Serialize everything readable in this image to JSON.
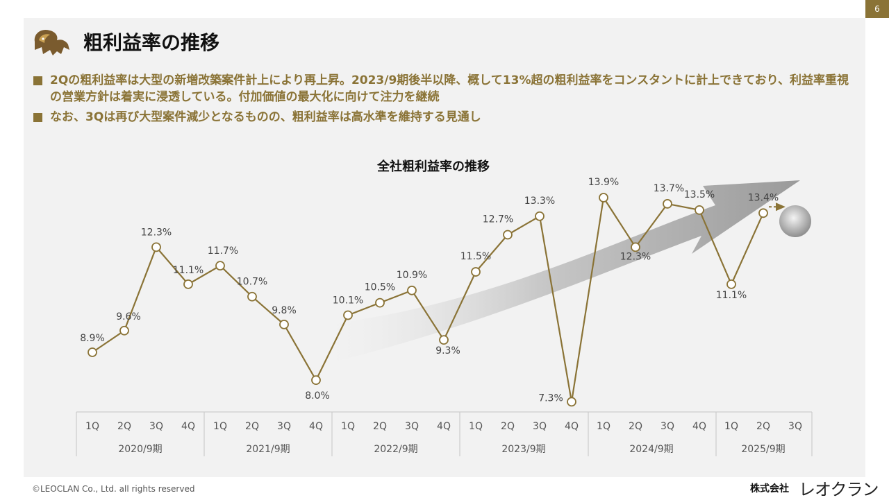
{
  "page_number": "6",
  "title": "粗利益率の推移",
  "bullets": [
    "2Qの粗利益率は大型の新増改築案件計上により再上昇。2023/9期後半以降、概して13%超の粗利益率をコンスタントに計上できており、利益率重視の営業方針は着実に浸透している。付加価値の最大化に向けて注力を継続",
    "なお、3Qは再び大型案件減少となるものの、粗利益率は高水準を維持する見通し"
  ],
  "footer": {
    "copyright": "©LEOCLAN Co., Ltd. all rights reserved",
    "company": "株式会社",
    "brand": "レオクラン"
  },
  "colors": {
    "accent": "#8a7336",
    "line": "#8a7336",
    "panel": "#f2f2f2"
  },
  "icons": {
    "logo": "lion-icon"
  },
  "chart_data": {
    "type": "line",
    "title": "全社粗利益率の推移",
    "quarters": [
      "1Q",
      "2Q",
      "3Q",
      "4Q",
      "1Q",
      "2Q",
      "3Q",
      "4Q",
      "1Q",
      "2Q",
      "3Q",
      "4Q",
      "1Q",
      "2Q",
      "3Q",
      "4Q",
      "1Q",
      "2Q",
      "3Q",
      "4Q",
      "1Q",
      "2Q",
      "3Q"
    ],
    "fiscal_years": [
      "2020/9期",
      "2021/9期",
      "2022/9期",
      "2023/9期",
      "2024/9期",
      "2025/9期"
    ],
    "values": [
      8.9,
      9.6,
      12.3,
      11.1,
      11.7,
      10.7,
      9.8,
      8.0,
      10.1,
      10.5,
      10.9,
      9.3,
      11.5,
      12.7,
      13.3,
      7.3,
      13.9,
      12.3,
      13.7,
      13.5,
      11.1,
      13.4,
      null
    ],
    "labels": [
      "8.9%",
      "9.6%",
      "12.3%",
      "11.1%",
      "11.7%",
      "10.7%",
      "9.8%",
      "8.0%",
      "10.1%",
      "10.5%",
      "10.9%",
      "9.3%",
      "11.5%",
      "12.7%",
      "13.3%",
      "7.3%",
      "13.9%",
      "12.3%",
      "13.7%",
      "13.5%",
      "11.1%",
      "13.4%",
      ""
    ],
    "forecast_index": 22,
    "trend_arrow": true,
    "grid": false,
    "legend": "none"
  }
}
